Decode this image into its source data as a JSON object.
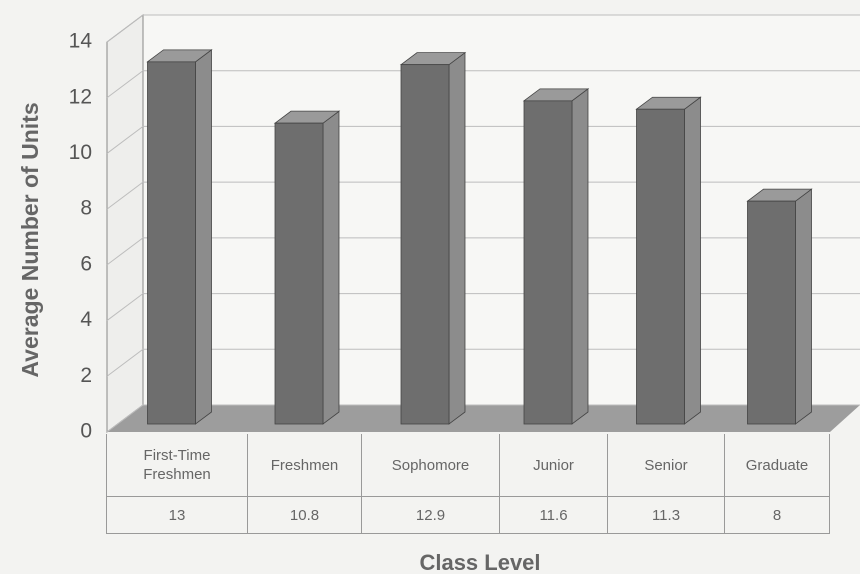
{
  "chart_data": {
    "type": "bar",
    "y_label": "Average Number of Units",
    "x_label": "Class Level",
    "categories": [
      "First-Time Freshmen",
      "Freshmen",
      "Sophomore",
      "Junior",
      "Senior",
      "Graduate"
    ],
    "values": [
      13,
      10.8,
      12.9,
      11.6,
      11.3,
      8
    ],
    "color": "#6e6e6e",
    "ylim": [
      0,
      14
    ],
    "yticks": [
      0,
      2,
      4,
      6,
      8,
      10,
      12,
      14
    ],
    "grid": true
  }
}
